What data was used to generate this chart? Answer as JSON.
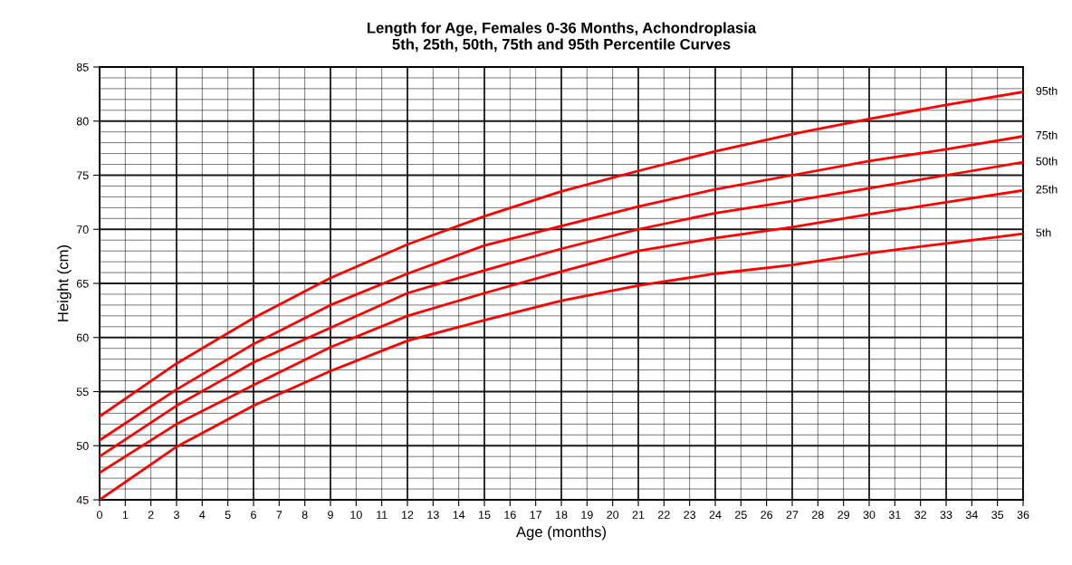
{
  "chart_data": {
    "type": "line",
    "title": "Length for Age, Females 0-36 Months, Achondroplasia\n5th, 25th, 50th, 75th and 95th Percentile Curves",
    "xlabel": "Age (months)",
    "ylabel": "Height (cm)",
    "x": [
      0,
      3,
      6,
      9,
      12,
      15,
      18,
      21,
      24,
      27,
      30,
      33,
      36
    ],
    "series": [
      {
        "name": "95th",
        "color": "#ff0000",
        "values": [
          52.7,
          57.6,
          61.8,
          65.5,
          68.6,
          71.2,
          73.5,
          75.4,
          77.2,
          78.8,
          80.2,
          81.5,
          82.7
        ]
      },
      {
        "name": "75th",
        "color": "#ff0000",
        "values": [
          50.5,
          55.2,
          59.4,
          63.0,
          65.9,
          68.5,
          70.3,
          72.1,
          73.7,
          75.0,
          76.3,
          77.4,
          78.6
        ]
      },
      {
        "name": "50th",
        "color": "#ff0000",
        "values": [
          49.0,
          53.7,
          57.7,
          60.9,
          64.1,
          66.2,
          68.2,
          70.0,
          71.5,
          72.6,
          73.8,
          75.0,
          76.2
        ]
      },
      {
        "name": "25th",
        "color": "#ff0000",
        "values": [
          47.5,
          52.0,
          55.6,
          59.1,
          62.0,
          64.1,
          66.1,
          68.0,
          69.2,
          70.2,
          71.4,
          72.5,
          73.6
        ]
      },
      {
        "name": "5th",
        "color": "#ff0000",
        "values": [
          45.0,
          49.9,
          53.7,
          56.9,
          59.7,
          61.6,
          63.4,
          64.8,
          65.9,
          66.7,
          67.8,
          68.7,
          69.6
        ]
      }
    ],
    "xlim": [
      0,
      36
    ],
    "ylim": [
      45,
      85
    ],
    "xticks": [
      0,
      1,
      2,
      3,
      4,
      5,
      6,
      7,
      8,
      9,
      10,
      11,
      12,
      13,
      14,
      15,
      16,
      17,
      18,
      19,
      20,
      21,
      22,
      23,
      24,
      25,
      26,
      27,
      28,
      29,
      30,
      31,
      32,
      33,
      34,
      35,
      36
    ],
    "yticks": [
      45,
      {
        "value": 46,
        "label": null
      },
      {
        "value": 47,
        "label": null
      },
      {
        "value": 48,
        "label": null
      },
      {
        "value": 49,
        "label": null
      },
      50,
      {
        "value": 51,
        "label": null
      },
      {
        "value": 52,
        "label": null
      },
      {
        "value": 53,
        "label": null
      },
      {
        "value": 54,
        "label": null
      },
      55,
      {
        "value": 56,
        "label": null
      },
      {
        "value": 57,
        "label": null
      },
      {
        "value": 58,
        "label": null
      },
      {
        "value": 59,
        "label": null
      },
      60,
      {
        "value": 61,
        "label": null
      },
      {
        "value": 62,
        "label": null
      },
      {
        "value": 63,
        "label": null
      },
      {
        "value": 64,
        "label": null
      },
      65,
      {
        "value": 66,
        "label": null
      },
      {
        "value": 67,
        "label": null
      },
      {
        "value": 68,
        "label": null
      },
      {
        "value": 69,
        "label": null
      },
      70,
      {
        "value": 71,
        "label": null
      },
      {
        "value": 72,
        "label": null
      },
      {
        "value": 73,
        "label": null
      },
      {
        "value": 74,
        "label": null
      },
      75,
      {
        "value": 76,
        "label": null
      },
      {
        "value": 77,
        "label": null
      },
      {
        "value": 78,
        "label": null
      },
      {
        "value": 79,
        "label": null
      },
      80,
      {
        "value": 81,
        "label": null
      },
      {
        "value": 82,
        "label": null
      },
      {
        "value": 83,
        "label": null
      },
      {
        "value": 84,
        "label": null
      },
      85
    ],
    "grid": true,
    "legend": false,
    "marker": "none",
    "line_style": "solid"
  }
}
